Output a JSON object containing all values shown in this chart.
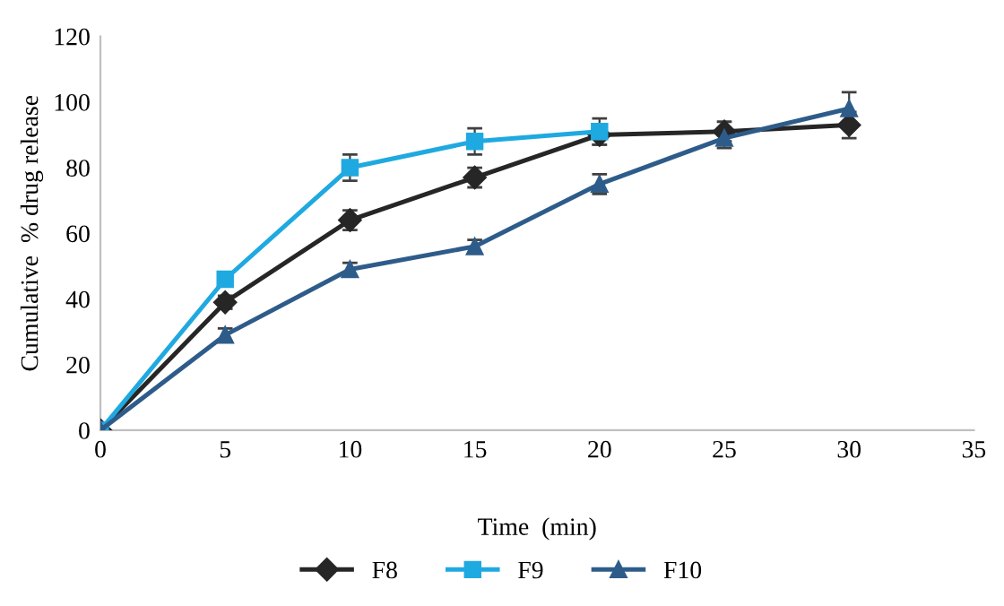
{
  "chart_data": {
    "type": "line",
    "xlabel": "Time  (min)",
    "ylabel": "Cumulative  % drug release",
    "xlim": [
      0,
      35
    ],
    "xticks": [
      0,
      5,
      10,
      15,
      20,
      25,
      30,
      35
    ],
    "ylim": [
      0,
      120
    ],
    "yticks": [
      0,
      20,
      40,
      60,
      80,
      100,
      120
    ],
    "grid": false,
    "legend": "bottom",
    "series": [
      {
        "name": "F8",
        "color": "#262626",
        "marker": "diamond",
        "x": [
          0,
          5,
          10,
          15,
          20,
          25,
          30
        ],
        "values": [
          0,
          39,
          64,
          77,
          90,
          91,
          93
        ],
        "errors": [
          null,
          2,
          3,
          3,
          3,
          3,
          4
        ]
      },
      {
        "name": "F9",
        "color": "#1fa9e1",
        "marker": "square",
        "x": [
          0,
          5,
          10,
          15,
          20
        ],
        "values": [
          0,
          46,
          80,
          88,
          91
        ],
        "errors": [
          null,
          null,
          4,
          4,
          4
        ]
      },
      {
        "name": "F10",
        "color": "#2e5c8a",
        "marker": "triangle",
        "x": [
          0,
          5,
          10,
          15,
          20,
          25,
          30
        ],
        "values": [
          0,
          29,
          49,
          56,
          75,
          89,
          98
        ],
        "errors": [
          null,
          2,
          2,
          2,
          3,
          3,
          5
        ]
      }
    ]
  }
}
